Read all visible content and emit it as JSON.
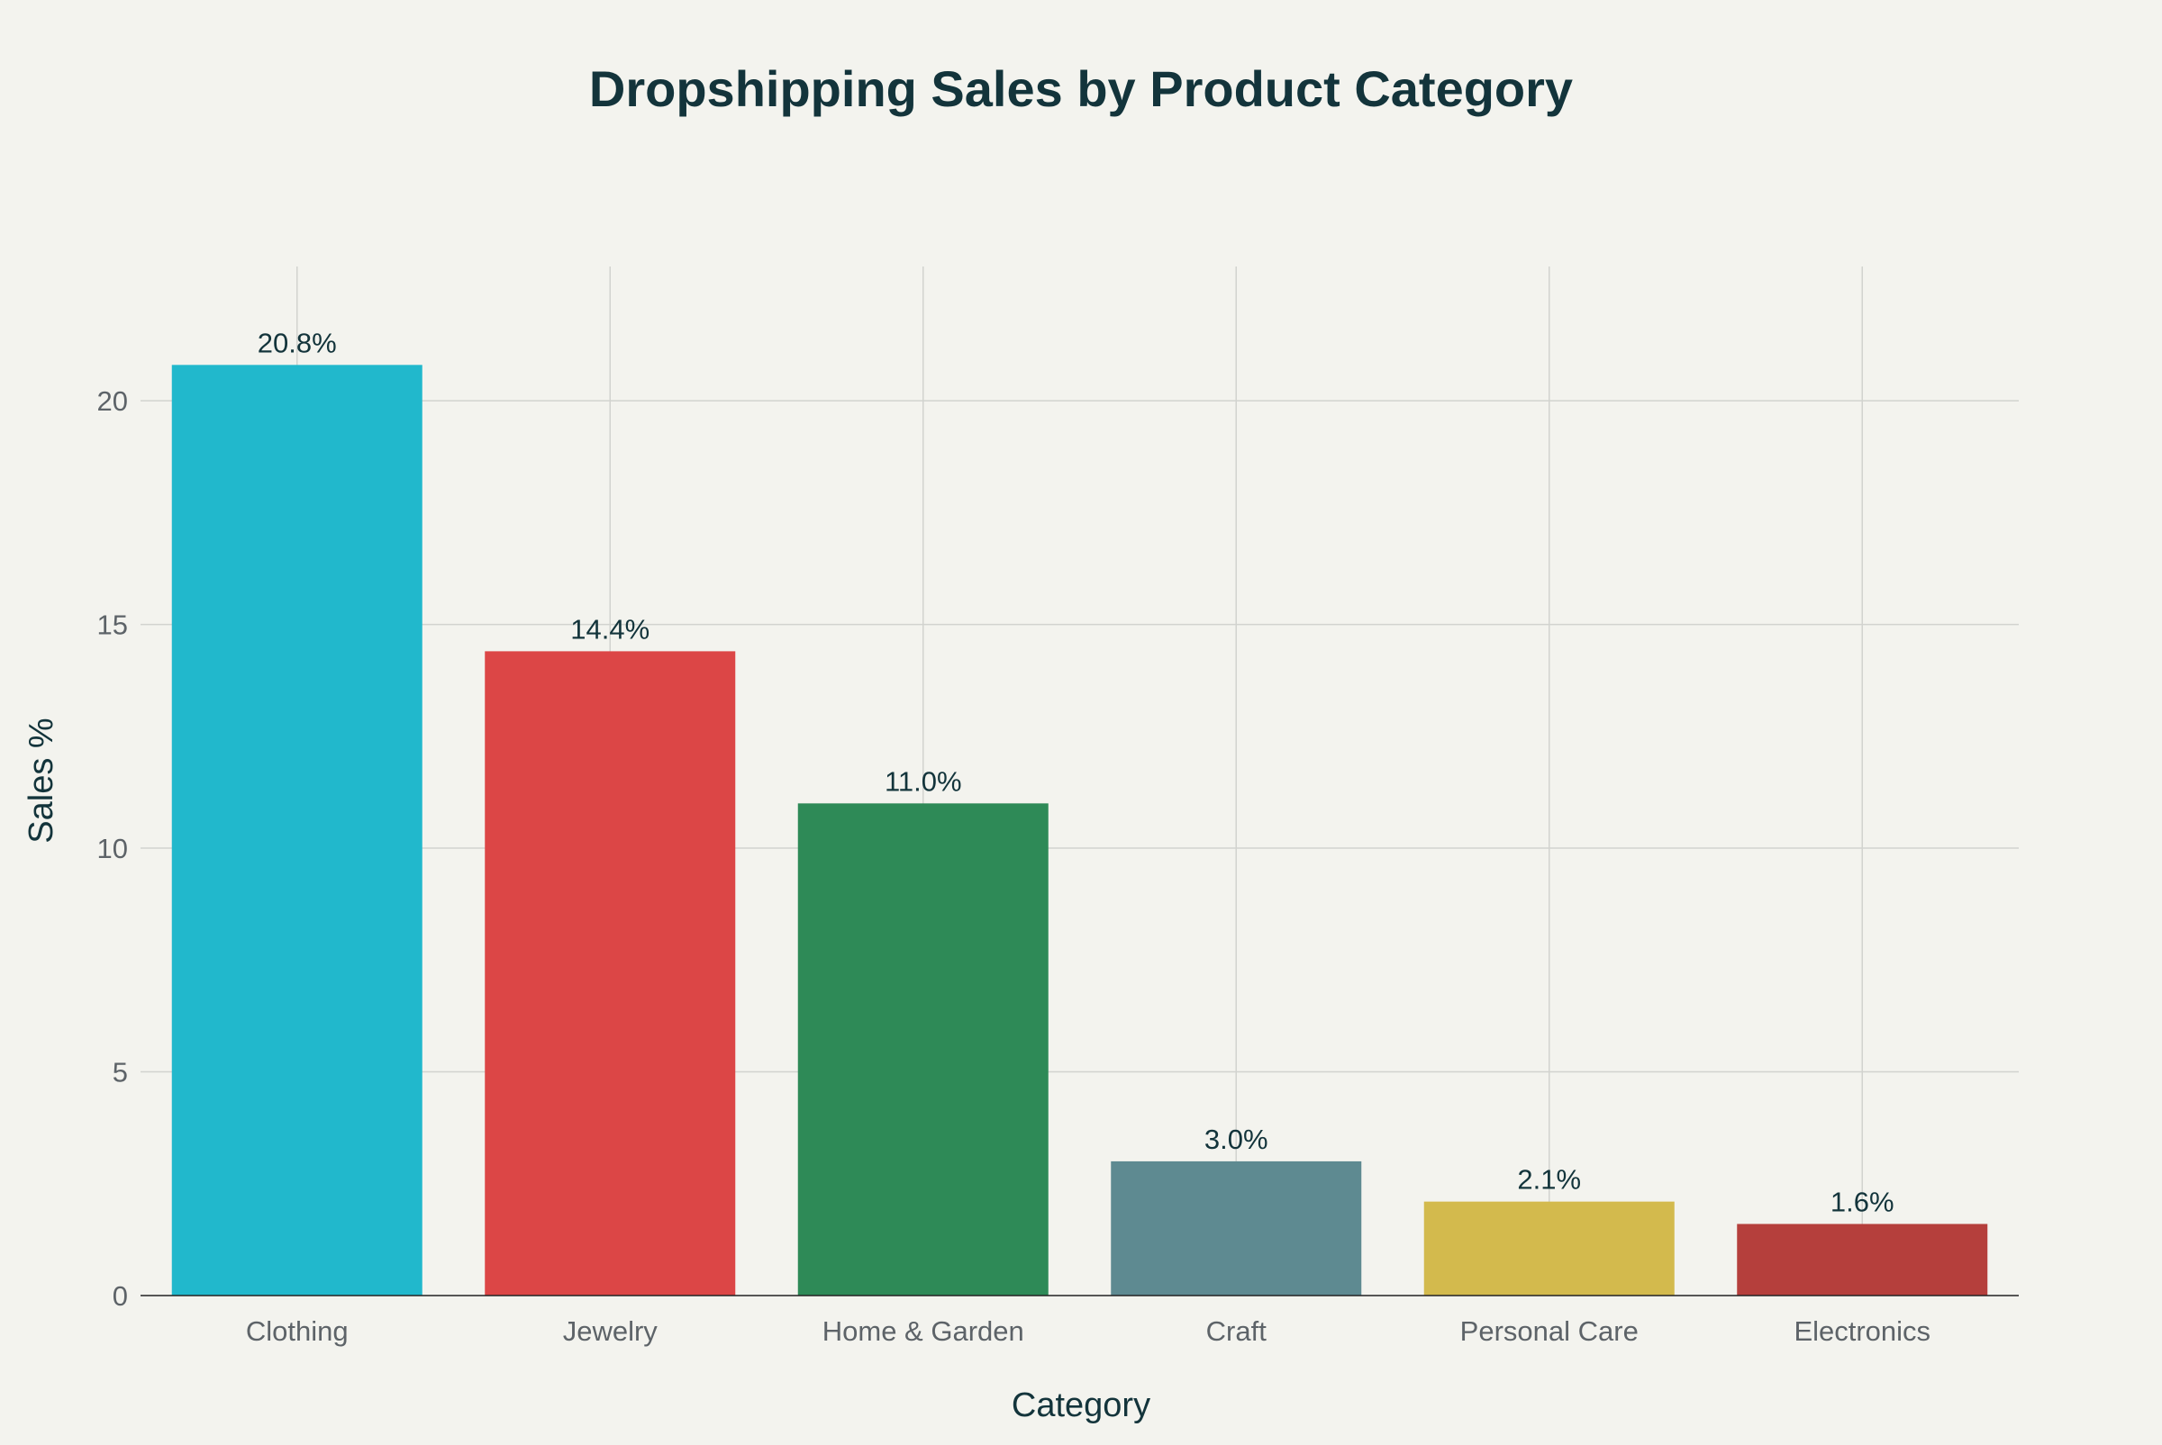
{
  "chart_data": {
    "type": "bar",
    "title": "Dropshipping Sales by Product Category",
    "xlabel": "Category",
    "ylabel": "Sales %",
    "categories": [
      "Clothing",
      "Jewelry",
      "Home & Garden",
      "Craft",
      "Personal Care",
      "Electronics"
    ],
    "values": [
      20.8,
      14.4,
      11.0,
      3.0,
      2.1,
      1.6
    ],
    "data_labels": [
      "20.8%",
      "14.4%",
      "11.0%",
      "3.0%",
      "2.1%",
      "1.6%"
    ],
    "colors": [
      "#21b8cc",
      "#dc4646",
      "#2e8a57",
      "#5e8a91",
      "#d3ba4d",
      "#b53f3c"
    ],
    "ylim": [
      0,
      23
    ],
    "yticks": [
      0,
      5,
      10,
      15,
      20
    ],
    "grid": true,
    "legend": "none",
    "background": "#f3f3ee"
  }
}
